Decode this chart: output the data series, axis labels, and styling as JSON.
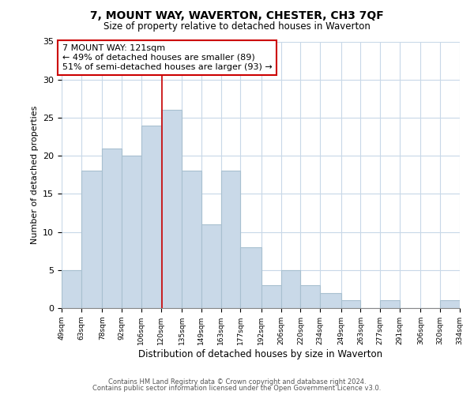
{
  "title": "7, MOUNT WAY, WAVERTON, CHESTER, CH3 7QF",
  "subtitle": "Size of property relative to detached houses in Waverton",
  "xlabel": "Distribution of detached houses by size in Waverton",
  "ylabel": "Number of detached properties",
  "bar_color": "#c9d9e8",
  "bar_edgecolor": "#a8c0d0",
  "annotation_line_color": "#cc0000",
  "annotation_box_edgecolor": "#cc0000",
  "annotation_line1": "7 MOUNT WAY: 121sqm",
  "annotation_line2": "← 49% of detached houses are smaller (89)",
  "annotation_line3": "51% of semi-detached houses are larger (93) →",
  "marker_value": 121,
  "bins": [
    49,
    63,
    78,
    92,
    106,
    120,
    135,
    149,
    163,
    177,
    192,
    206,
    220,
    234,
    249,
    263,
    277,
    291,
    306,
    320,
    334
  ],
  "counts": [
    5,
    18,
    21,
    20,
    24,
    26,
    18,
    11,
    18,
    8,
    3,
    5,
    3,
    2,
    1,
    0,
    1,
    0,
    0,
    1
  ],
  "ylim": [
    0,
    35
  ],
  "yticks": [
    0,
    5,
    10,
    15,
    20,
    25,
    30,
    35
  ],
  "footer_line1": "Contains HM Land Registry data © Crown copyright and database right 2024.",
  "footer_line2": "Contains public sector information licensed under the Open Government Licence v3.0.",
  "background_color": "#ffffff",
  "grid_color": "#c8d8e8"
}
